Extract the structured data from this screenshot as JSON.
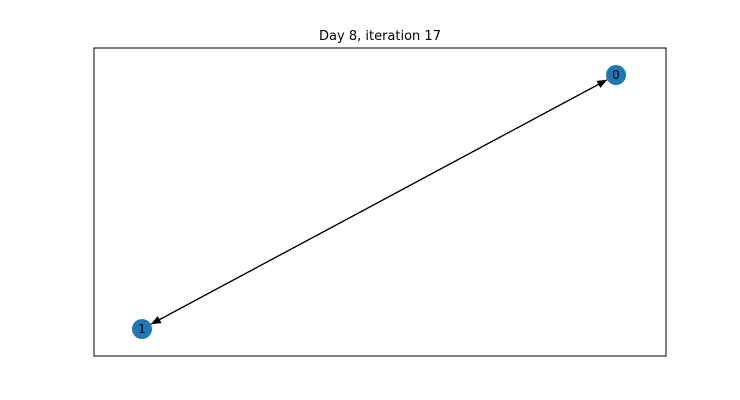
{
  "title": "Day 8, iteration 17",
  "graph": {
    "node_color": "#1f77b4",
    "edge_color": "#000000",
    "directed": true,
    "nodes": [
      {
        "id": "0",
        "label": "0"
      },
      {
        "id": "1",
        "label": "1"
      }
    ],
    "edges": [
      {
        "source": "0",
        "target": "1"
      },
      {
        "source": "1",
        "target": "0"
      }
    ]
  }
}
